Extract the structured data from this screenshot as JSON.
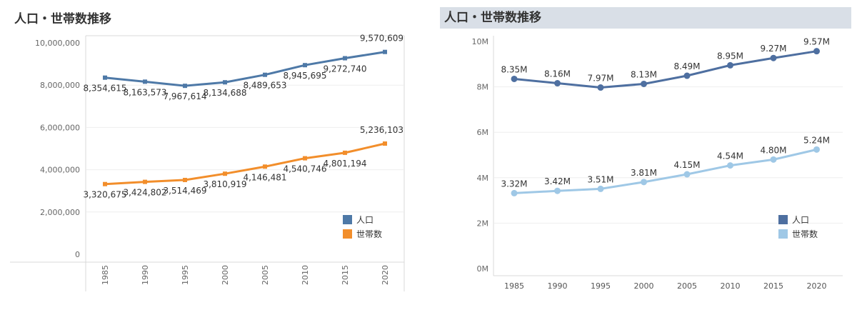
{
  "chart_data": [
    {
      "type": "line",
      "title": "人口・世帯数推移",
      "categories": [
        "1985",
        "1990",
        "1995",
        "2000",
        "2005",
        "2010",
        "2015",
        "2020"
      ],
      "ylim": [
        0,
        10000000
      ],
      "yticks": [
        "0",
        "2,000,000",
        "4,000,000",
        "6,000,000",
        "8,000,000",
        "10,000,000"
      ],
      "x_tick_rotation": "vertical",
      "grid": true,
      "legend_position": "bottom-right",
      "series": [
        {
          "name": "人口",
          "color": "#4e79a7",
          "values": [
            8354615,
            8163573,
            7967614,
            8134688,
            8489653,
            8945695,
            9272740,
            9570609
          ],
          "labels": [
            "8,354,615",
            "8,163,573",
            "7,967,614",
            "8,134,688",
            "8,489,653",
            "8,945,695",
            "9,272,740",
            "9,570,609"
          ]
        },
        {
          "name": "世帯数",
          "color": "#f28e2b",
          "values": [
            3320675,
            3424802,
            3514469,
            3810919,
            4146481,
            4540746,
            4801194,
            5236103
          ],
          "labels": [
            "3,320,675",
            "3,424,802",
            "3,514,469",
            "3,810,919",
            "4,146,481",
            "4,540,746",
            "4,801,194",
            "5,236,103"
          ]
        }
      ]
    },
    {
      "type": "line",
      "title": "人口・世帯数推移",
      "categories": [
        "1985",
        "1990",
        "1995",
        "2000",
        "2005",
        "2010",
        "2015",
        "2020"
      ],
      "ylim": [
        0,
        10000000
      ],
      "yticks": [
        "0M",
        "2M",
        "4M",
        "6M",
        "8M",
        "10M"
      ],
      "grid": true,
      "legend_position": "bottom-right",
      "series": [
        {
          "name": "人口",
          "color": "#4e6fa0",
          "values": [
            8350000,
            8160000,
            7970000,
            8130000,
            8490000,
            8950000,
            9270000,
            9570000
          ],
          "labels": [
            "8.35M",
            "8.16M",
            "7.97M",
            "8.13M",
            "8.49M",
            "8.95M",
            "9.27M",
            "9.57M"
          ]
        },
        {
          "name": "世帯数",
          "color": "#9fc8e6",
          "values": [
            3320000,
            3420000,
            3510000,
            3810000,
            4150000,
            4540000,
            4800000,
            5240000
          ],
          "labels": [
            "3.32M",
            "3.42M",
            "3.51M",
            "3.81M",
            "4.15M",
            "4.54M",
            "4.80M",
            "5.24M"
          ]
        }
      ]
    }
  ]
}
